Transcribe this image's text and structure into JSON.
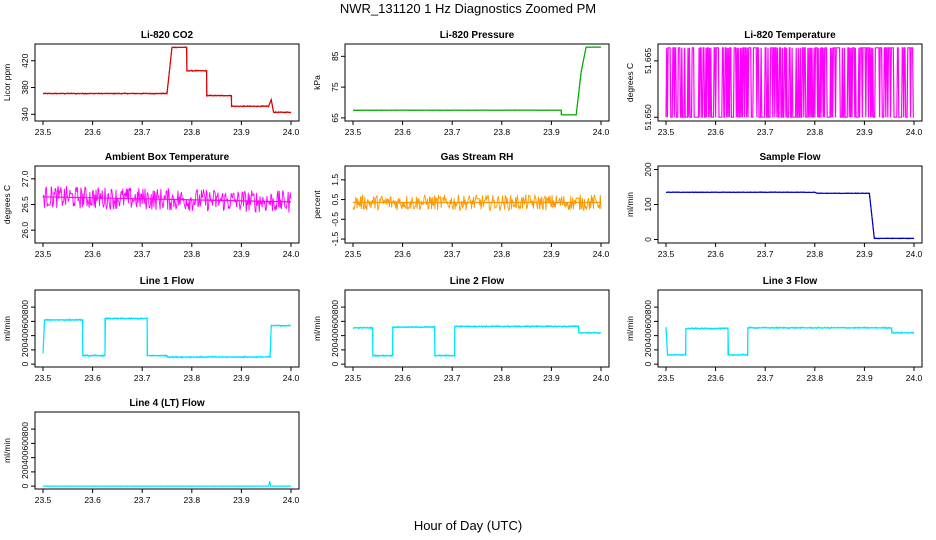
{
  "title": "NWR_131120  1 Hz Diagnostics Zoomed PM",
  "xlabel": "Hour of Day (UTC)",
  "chart_data": [
    {
      "type": "line",
      "title": "Li-820 CO2",
      "ylabel": "Licor ppm",
      "color": "#dd0000",
      "xlim": [
        23.5,
        24.0
      ],
      "ylim": [
        330,
        445
      ],
      "yticks": [
        "340",
        "380",
        "420"
      ],
      "xticks": [
        "23.5",
        "23.6",
        "23.7",
        "23.8",
        "23.9",
        "24.0"
      ],
      "series": [
        {
          "x": [
            23.5,
            23.75,
            23.75,
            23.76,
            23.76,
            23.79,
            23.79,
            23.83,
            23.83,
            23.88,
            23.88,
            23.955,
            23.96,
            23.965,
            24.0
          ],
          "y": [
            371,
            371,
            371,
            440,
            440,
            440,
            405,
            405,
            368,
            368,
            352,
            352,
            362,
            343,
            343
          ],
          "noise": 1
        }
      ]
    },
    {
      "type": "line",
      "title": "Li-820 Pressure",
      "ylabel": "kPa",
      "color": "#00aa00",
      "xlim": [
        23.5,
        24.0
      ],
      "ylim": [
        64,
        89
      ],
      "yticks": [
        "65",
        "75",
        "85"
      ],
      "xticks": [
        "23.5",
        "23.6",
        "23.7",
        "23.8",
        "23.9",
        "24.0"
      ],
      "series": [
        {
          "x": [
            23.5,
            23.92,
            23.92,
            23.95,
            23.96,
            23.97,
            24.0
          ],
          "y": [
            67.5,
            67.5,
            66,
            66,
            80,
            88,
            88
          ],
          "noise": 0.1
        }
      ]
    },
    {
      "type": "line",
      "title": "Li-820 Temperature",
      "ylabel": "degrees C",
      "color": "#ff00ff",
      "xlim": [
        23.5,
        24.0
      ],
      "ylim": [
        51.649,
        51.6695
      ],
      "yticks": [
        "51.650",
        "51.665"
      ],
      "xticks": [
        "23.5",
        "23.6",
        "23.7",
        "23.8",
        "23.9",
        "24.0"
      ],
      "series": [
        {
          "x": [
            23.5,
            24.0
          ],
          "y": [
            51.659,
            51.659
          ],
          "noise": 0,
          "pattern": "binary",
          "levels": [
            51.65,
            51.6685
          ]
        }
      ]
    },
    {
      "type": "line",
      "title": "Ambient Box Temperature",
      "ylabel": "degrees C",
      "color": "#ff00ff",
      "xlim": [
        23.5,
        24.0
      ],
      "ylim": [
        25.75,
        27.25
      ],
      "yticks": [
        "26.0",
        "26.5",
        "27.0"
      ],
      "xticks": [
        "23.5",
        "23.6",
        "23.7",
        "23.8",
        "23.9",
        "24.0"
      ],
      "series": [
        {
          "x": [
            23.5,
            24.0
          ],
          "y": [
            26.65,
            26.55
          ],
          "noise": 0.22
        }
      ]
    },
    {
      "type": "line",
      "title": "Gas Stream RH",
      "ylabel": "percent",
      "color": "#ff9900",
      "xlim": [
        23.5,
        24.0
      ],
      "ylim": [
        -1.7,
        2.2
      ],
      "yticks": [
        "-1.5",
        "-0.5",
        "0.5",
        "1.5"
      ],
      "xticks": [
        "23.5",
        "23.6",
        "23.7",
        "23.8",
        "23.9",
        "24.0"
      ],
      "series": [
        {
          "x": [
            23.5,
            24.0
          ],
          "y": [
            0.35,
            0.35
          ],
          "noise": 0.4
        }
      ]
    },
    {
      "type": "line",
      "title": "Sample Flow",
      "ylabel": "ml/min",
      "color": "#0000cc",
      "xlim": [
        23.5,
        24.0
      ],
      "ylim": [
        -10,
        210
      ],
      "yticks": [
        "0",
        "100",
        "200"
      ],
      "xticks": [
        "23.5",
        "23.6",
        "23.7",
        "23.8",
        "23.9",
        "24.0"
      ],
      "series": [
        {
          "x": [
            23.5,
            23.8,
            23.805,
            23.91,
            23.91,
            23.92,
            24.0
          ],
          "y": [
            135,
            135,
            132,
            132,
            132,
            3,
            3
          ],
          "noise": 1.2
        }
      ]
    },
    {
      "type": "line",
      "title": "Line 1 Flow",
      "ylabel": "ml/min",
      "color": "#00e5ff",
      "xlim": [
        23.5,
        24.0
      ],
      "ylim": [
        -40,
        1040
      ],
      "yticks": [
        "0",
        "200",
        "400",
        "600",
        "800"
      ],
      "xticks": [
        "23.5",
        "23.6",
        "23.7",
        "23.8",
        "23.9",
        "24.0"
      ],
      "series": [
        {
          "x": [
            23.5,
            23.5,
            23.503,
            23.58,
            23.58,
            23.625,
            23.625,
            23.71,
            23.71,
            23.75,
            23.75,
            23.958,
            23.958,
            23.96,
            24.0
          ],
          "y": [
            150,
            150,
            620,
            620,
            120,
            120,
            640,
            640,
            120,
            120,
            100,
            100,
            100,
            540,
            540
          ],
          "noise": 12
        }
      ]
    },
    {
      "type": "line",
      "title": "Line 2 Flow",
      "ylabel": "ml/min",
      "color": "#00e5ff",
      "xlim": [
        23.5,
        24.0
      ],
      "ylim": [
        -40,
        1040
      ],
      "yticks": [
        "0",
        "200",
        "400",
        "600",
        "800"
      ],
      "xticks": [
        "23.5",
        "23.6",
        "23.7",
        "23.8",
        "23.9",
        "24.0"
      ],
      "series": [
        {
          "x": [
            23.5,
            23.54,
            23.54,
            23.58,
            23.58,
            23.665,
            23.665,
            23.705,
            23.705,
            23.955,
            23.955,
            24.0
          ],
          "y": [
            510,
            510,
            120,
            120,
            520,
            520,
            120,
            120,
            530,
            530,
            440,
            440
          ],
          "noise": 12
        }
      ]
    },
    {
      "type": "line",
      "title": "Line 3 Flow",
      "ylabel": "ml/min",
      "color": "#00e5ff",
      "xlim": [
        23.5,
        24.0
      ],
      "ylim": [
        -40,
        1040
      ],
      "yticks": [
        "0",
        "200",
        "400",
        "600",
        "800"
      ],
      "xticks": [
        "23.5",
        "23.6",
        "23.7",
        "23.8",
        "23.9",
        "24.0"
      ],
      "series": [
        {
          "x": [
            23.5,
            23.5,
            23.503,
            23.54,
            23.54,
            23.625,
            23.625,
            23.665,
            23.665,
            23.955,
            23.955,
            24.0
          ],
          "y": [
            520,
            520,
            130,
            130,
            500,
            500,
            130,
            130,
            510,
            510,
            440,
            440
          ],
          "noise": 12
        }
      ]
    },
    {
      "type": "line",
      "title": "Line 4 (LT) Flow",
      "ylabel": "ml/min",
      "color": "#00e5ff",
      "xlim": [
        23.5,
        24.0
      ],
      "ylim": [
        -40,
        1040
      ],
      "yticks": [
        "0",
        "200",
        "400",
        "600",
        "800"
      ],
      "xticks": [
        "23.5",
        "23.6",
        "23.7",
        "23.8",
        "23.9",
        "24.0"
      ],
      "series": [
        {
          "x": [
            23.5,
            23.955,
            23.957,
            23.959,
            23.961,
            24.0
          ],
          "y": [
            0,
            0,
            70,
            0,
            0,
            0
          ],
          "noise": 3
        }
      ]
    }
  ]
}
